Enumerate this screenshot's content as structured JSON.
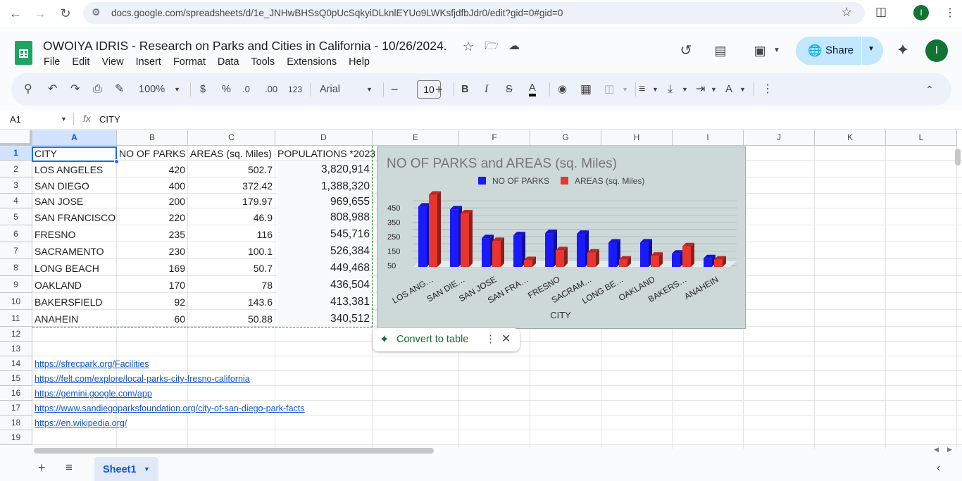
{
  "browser": {
    "url": "docs.google.com/spreadsheets/d/1e_JNHwBHSsQ0pUcSqkyiDLknlEYUo9LWKsfjdfbJdr0/edit?gid=0#gid=0",
    "avatar_letter": "I"
  },
  "app": {
    "title": "OWOIYA IDRIS - Research on Parks and Cities in California - 10/26/2024.",
    "menus": [
      "File",
      "Edit",
      "View",
      "Insert",
      "Format",
      "Data",
      "Tools",
      "Extensions",
      "Help"
    ],
    "share_label": "Share",
    "avatar_letter": "I",
    "accent_color": "#0b57d0"
  },
  "toolbar": {
    "zoom": "100%",
    "currency": "$",
    "percent": "%",
    "decrease_decimal": ".0",
    "increase_decimal": ".00",
    "number_format": "123",
    "font": "Arial",
    "font_size": "10",
    "bold": "B",
    "italic": "I",
    "underline_color_label": "A"
  },
  "formula_bar": {
    "name_box": "A1",
    "fx": "fx",
    "content": "CITY"
  },
  "grid": {
    "columns": [
      "A",
      "B",
      "C",
      "D",
      "E",
      "F",
      "G",
      "H",
      "I",
      "J",
      "K",
      "L"
    ],
    "rows": [
      "1",
      "2",
      "3",
      "4",
      "5",
      "6",
      "7",
      "8",
      "9",
      "10",
      "11",
      "12",
      "13",
      "14",
      "15",
      "16",
      "17",
      "18",
      "19"
    ],
    "header_row": [
      "CITY",
      "NO OF PARKS",
      "AREAS (sq. Miles)",
      "POPULATIONS *2023"
    ],
    "data_rows": [
      [
        "LOS ANGELES",
        "420",
        "502.7",
        "3,820,914"
      ],
      [
        "SAN DIEGO",
        "400",
        "372.42",
        "1,388,320"
      ],
      [
        "SAN JOSE",
        "200",
        "179.97",
        "969,655"
      ],
      [
        "SAN FRANCISCO",
        "220",
        "46.9",
        "808,988"
      ],
      [
        "FRESNO",
        "235",
        "116",
        "545,716"
      ],
      [
        "SACRAMENTO",
        "230",
        "100.1",
        "526,384"
      ],
      [
        "LONG BEACH",
        "169",
        "50.7",
        "449,468"
      ],
      [
        "OAKLAND",
        "170",
        "78",
        "436,504"
      ],
      [
        "BAKERSFIELD",
        "92",
        "143.6",
        "413,381"
      ],
      [
        "ANAHEIN",
        "60",
        "50.88",
        "340,512"
      ]
    ],
    "links": [
      "https://sfrecpark.org/Facilities",
      "https://felt.com/explore/local-parks-city-fresno-california",
      "https://gemini.google.com/app",
      "https://www.sandiegoparksfoundation.org/city-of-san-diego-park-facts",
      "https://en.wikipedia.org/"
    ]
  },
  "convert_chip": {
    "label": "Convert to table"
  },
  "bottom": {
    "sheet_name": "Sheet1"
  },
  "chart_data": {
    "type": "bar",
    "title": "NO OF PARKS and AREAS (sq. Miles)",
    "xlabel": "CITY",
    "ylabel": "",
    "categories": [
      "LOS ANG…",
      "SAN DIE…",
      "SAN JOSE",
      "SAN FRA…",
      "FRESNO",
      "SACRAM…",
      "LONG BE…",
      "OAKLAND",
      "BAKERS…",
      "ANAHEIN"
    ],
    "series": [
      {
        "name": "NO OF PARKS",
        "color": "#1a1aff",
        "values": [
          420,
          400,
          200,
          220,
          235,
          230,
          169,
          170,
          92,
          60
        ]
      },
      {
        "name": "AREAS (sq. Miles)",
        "color": "#e8352e",
        "values": [
          502.7,
          372.42,
          179.97,
          46.9,
          116,
          100.1,
          50.7,
          78,
          143.6,
          50.88
        ]
      }
    ],
    "yticks": [
      "450",
      "350",
      "250",
      "150",
      "50"
    ],
    "ylim": [
      0,
      500
    ],
    "legend": "top",
    "grid": true,
    "style": "3d-column"
  }
}
